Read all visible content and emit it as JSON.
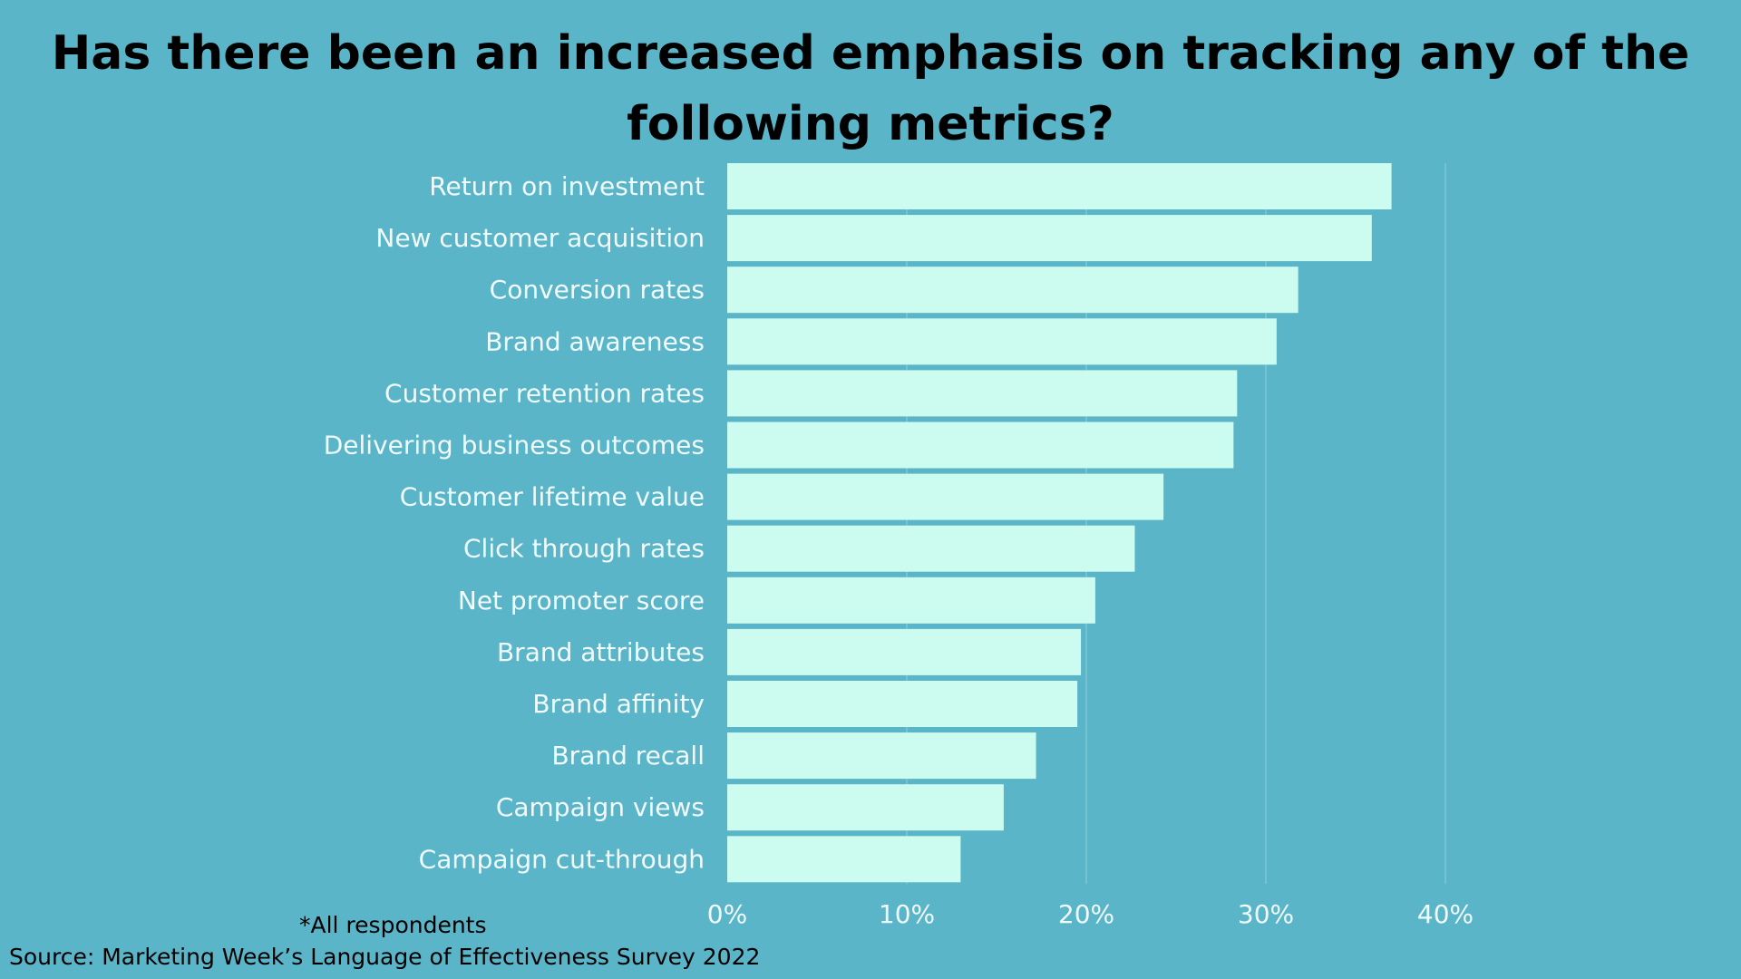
{
  "chart_data": {
    "type": "bar",
    "orientation": "horizontal",
    "title": "Has there been an increased emphasis on tracking any of the following metrics?",
    "xlabel": "",
    "ylabel": "",
    "categories": [
      "Return on investment",
      "New customer acquisition",
      "Conversion rates",
      "Brand awareness",
      "Customer retention rates",
      "Delivering business outcomes",
      "Customer lifetime value",
      "Click through rates",
      "Net promoter score",
      "Brand attributes",
      "Brand affinity",
      "Brand recall",
      "Campaign views",
      "Campaign cut-through"
    ],
    "values": [
      37,
      35.9,
      31.8,
      30.6,
      28.4,
      28.2,
      24.3,
      22.7,
      20.5,
      19.7,
      19.5,
      17.2,
      15.4,
      13
    ],
    "xlim": [
      0,
      40
    ],
    "xticks": [
      0,
      10,
      20,
      30,
      40
    ],
    "tick_labels": [
      "0%",
      "10%",
      "20%",
      "30%",
      "40%"
    ],
    "grid": true,
    "colors": {
      "background": "#5bb5c8",
      "bar": "#ccfbf0",
      "label": "#f0fbfd",
      "grid": "#7cc6d6",
      "title": "#000000"
    }
  },
  "footer": {
    "note": "*All respondents",
    "source": "Source: Marketing Week’s Language of Effectiveness Survey 2022"
  }
}
